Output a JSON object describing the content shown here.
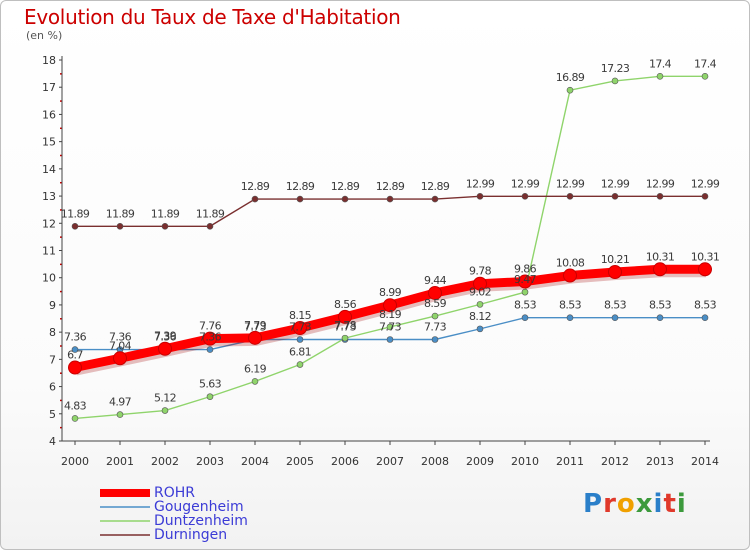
{
  "title": "Evolution du Taux de Taxe d'Habitation",
  "subtitle": "(en %)",
  "logo": {
    "letters": [
      "P",
      "r",
      "o",
      "x",
      "i",
      "t",
      "i"
    ],
    "colors": [
      "#2a7fc9",
      "#e0392b",
      "#f0a000",
      "#3c9a3c",
      "#2a7fc9",
      "#e0392b",
      "#3c9a3c"
    ]
  },
  "chart_data": {
    "type": "line",
    "title": "Evolution du Taux de Taxe d'Habitation",
    "ylabel": "(en %)",
    "xlabel": "",
    "x": [
      "2000",
      "2001",
      "2002",
      "2003",
      "2004",
      "2005",
      "2006",
      "2007",
      "2008",
      "2009",
      "2010",
      "2011",
      "2012",
      "2013",
      "2014"
    ],
    "ylim": [
      4,
      18
    ],
    "yticks": [
      "4",
      "5",
      "6",
      "7",
      "8",
      "9",
      "10",
      "11",
      "12",
      "13",
      "14",
      "15",
      "16",
      "17",
      "18"
    ],
    "grid": false,
    "legend_position": "bottom-left",
    "series": [
      {
        "name": "ROHR",
        "color": "#ff0000",
        "emphasis": true,
        "values": [
          6.7,
          7.04,
          7.39,
          7.76,
          7.79,
          8.15,
          8.56,
          8.99,
          9.44,
          9.78,
          9.86,
          10.08,
          10.21,
          10.31,
          10.31
        ],
        "labels": [
          "6.7",
          "7.04",
          "7.39",
          "7.76",
          "7.79",
          "8.15",
          "8.56",
          "8.99",
          "9.44",
          "9.78",
          "9.86",
          "10.08",
          "10.21",
          "10.31",
          "10.31"
        ]
      },
      {
        "name": "Gougenheim",
        "color": "#4a8ec6",
        "emphasis": false,
        "values": [
          7.36,
          7.36,
          7.36,
          7.36,
          7.73,
          7.73,
          7.73,
          7.73,
          7.73,
          8.12,
          8.53,
          8.53,
          8.53,
          8.53,
          8.53
        ],
        "labels": [
          "7.36",
          "7.36",
          "7.36",
          "7.36",
          "7.73",
          "7.73",
          "7.73",
          "7.73",
          "7.73",
          "8.12",
          "8.53",
          "8.53",
          "8.53",
          "8.53",
          "8.53"
        ]
      },
      {
        "name": "Duntzenheim",
        "color": "#8fd46b",
        "emphasis": false,
        "values": [
          4.83,
          4.97,
          5.12,
          5.63,
          6.19,
          6.81,
          7.78,
          8.19,
          8.59,
          9.02,
          9.47,
          16.89,
          17.23,
          17.4,
          17.4
        ],
        "labels": [
          "4.83",
          "4.97",
          "5.12",
          "5.63",
          "6.19",
          "6.81",
          "7.78",
          "8.19",
          "8.59",
          "9.02",
          "9.47",
          "16.89",
          "17.23",
          "17.4",
          "17.4"
        ]
      },
      {
        "name": "Durningen",
        "color": "#7a2f2f",
        "emphasis": false,
        "values": [
          11.89,
          11.89,
          11.89,
          11.89,
          12.89,
          12.89,
          12.89,
          12.89,
          12.89,
          12.99,
          12.99,
          12.99,
          12.99,
          12.99,
          12.99
        ],
        "labels": [
          "11.89",
          "11.89",
          "11.89",
          "11.89",
          "12.89",
          "12.89",
          "12.89",
          "12.89",
          "12.89",
          "12.99",
          "12.99",
          "12.99",
          "12.99",
          "12.99",
          "12.99"
        ]
      }
    ]
  }
}
